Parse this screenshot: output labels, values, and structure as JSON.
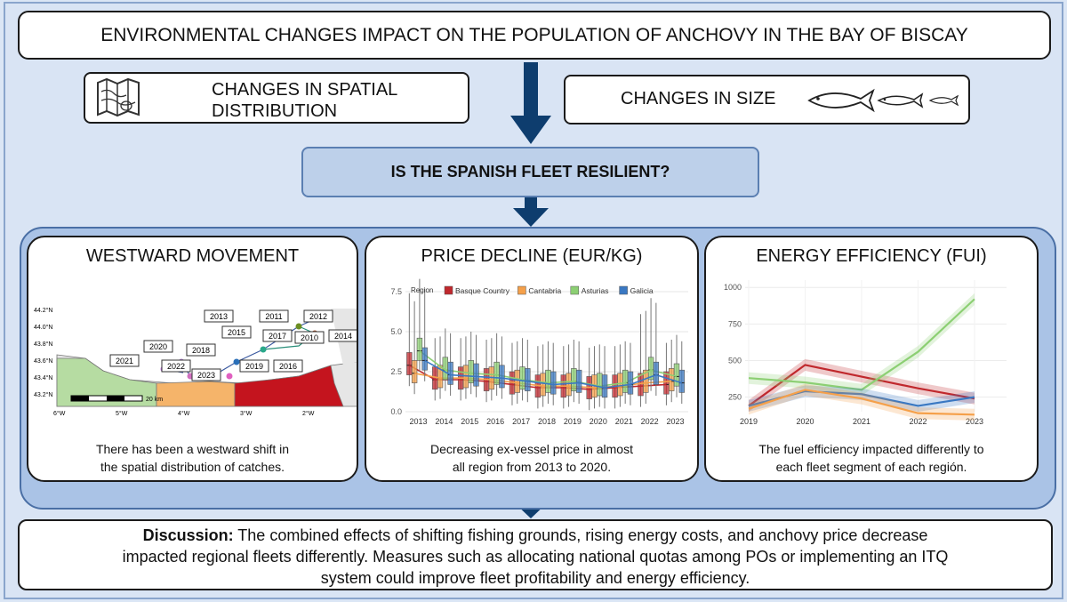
{
  "title": "ENVIRONMENTAL CHANGES IMPACT ON THE POPULATION OF ANCHOVY IN THE BAY OF BISCAY",
  "spatial": {
    "line1": "CHANGES IN SPATIAL",
    "line2": "DISTRIBUTION",
    "icon": "map-icon"
  },
  "size": {
    "label": "CHANGES IN SIZE",
    "icon": "fish-icon"
  },
  "question": "IS THE SPANISH FLEET RESILIENT?",
  "panels": {
    "westward": {
      "title": "WESTWARD MOVEMENT",
      "caption_line1": "There has been a westward shift in",
      "caption_line2": "the spatial distribution of catches.",
      "map": {
        "lat_labels": [
          "44.2°N",
          "44.0°N",
          "43.8°N",
          "43.6°N",
          "43.4°N",
          "43.2°N"
        ],
        "lon_labels": [
          "6°W",
          "5°W",
          "4°W",
          "3°W",
          "2°W"
        ],
        "scale": "20 km",
        "years": [
          "2013",
          "2011",
          "2012",
          "2015",
          "2017",
          "2010",
          "2014",
          "2020",
          "2018",
          "2021",
          "2022",
          "2023",
          "2019",
          "2016"
        ]
      }
    },
    "price": {
      "title": "PRICE DECLINE (EUR/KG)",
      "caption_line1": "Decreasing ex-vessel price in almost",
      "caption_line2": "all region from 2013 to 2020."
    },
    "energy": {
      "title": "ENERGY EFFICIENCY (FUI)",
      "caption_line1": "The fuel efficiency impacted differently to",
      "caption_line2": "each fleet segment of each región."
    }
  },
  "discussion": {
    "label": "Discussion:",
    "line1": " The combined effects of shifting fishing grounds, rising energy costs, and anchovy price decrease",
    "line2": "impacted regional fleets differently. Measures such as allocating national quotas among POs or implementing an ITQ",
    "line3": "system could improve fleet profitability and energy efficiency."
  },
  "colors": {
    "basque": "#c0282d",
    "cantabria": "#f5a04a",
    "asturias": "#8ccf73",
    "galicia": "#3a78c2",
    "accent": "#0e3d6e"
  },
  "chart_data": [
    {
      "type": "box",
      "title": "PRICE DECLINE (EUR/KG)",
      "legend_title": "Region",
      "categories": [
        "2013",
        "2014",
        "2015",
        "2016",
        "2017",
        "2018",
        "2019",
        "2020",
        "2021",
        "2022",
        "2023"
      ],
      "ylim": [
        0,
        8
      ],
      "yticks": [
        "0.0",
        "2.5",
        "5.0",
        "7.5"
      ],
      "series": [
        {
          "name": "Basque Country",
          "color": "#c0282d",
          "median": [
            2.9,
            2.0,
            2.0,
            1.9,
            1.7,
            1.5,
            1.5,
            1.4,
            1.5,
            1.6,
            1.7
          ]
        },
        {
          "name": "Cantabria",
          "color": "#f5a04a",
          "median": [
            2.4,
            2.1,
            2.1,
            2.0,
            1.8,
            1.6,
            1.6,
            1.5,
            1.6,
            1.8,
            1.9
          ]
        },
        {
          "name": "Asturias",
          "color": "#8ccf73",
          "median": [
            3.8,
            2.6,
            2.4,
            2.3,
            2.0,
            1.8,
            1.9,
            1.6,
            1.8,
            2.6,
            2.2
          ]
        },
        {
          "name": "Galicia",
          "color": "#3a78c2",
          "median": [
            3.2,
            2.3,
            2.2,
            2.1,
            1.9,
            1.7,
            1.8,
            1.5,
            1.7,
            2.3,
            1.8
          ]
        }
      ]
    },
    {
      "type": "line",
      "title": "ENERGY EFFICIENCY (FUI)",
      "x": [
        "2019",
        "2020",
        "2021",
        "2022",
        "2023"
      ],
      "ylim": [
        150,
        1050
      ],
      "yticks": [
        "250",
        "500",
        "750",
        "1000"
      ],
      "series": [
        {
          "color": "#c0282d",
          "values": [
            190,
            470,
            390,
            310,
            240
          ]
        },
        {
          "color": "#8ccf73",
          "values": [
            380,
            350,
            300,
            560,
            920
          ]
        },
        {
          "color": "#3a78c2",
          "values": [
            190,
            290,
            270,
            190,
            250
          ]
        },
        {
          "color": "#f5a04a",
          "values": [
            170,
            300,
            240,
            140,
            130
          ]
        }
      ]
    }
  ]
}
